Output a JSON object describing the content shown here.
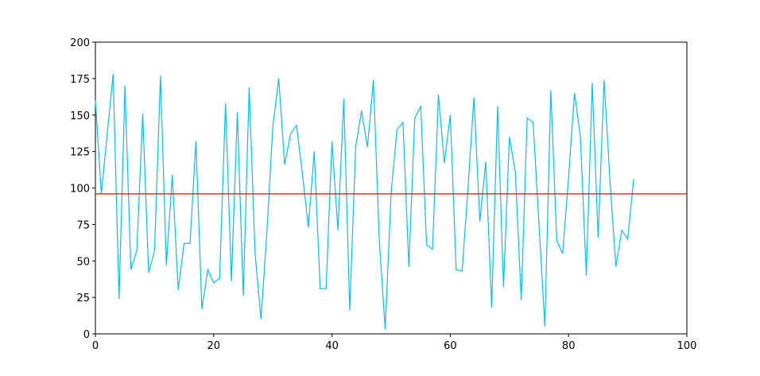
{
  "chart_data": {
    "type": "line",
    "x": [
      0,
      1,
      2,
      3,
      4,
      5,
      6,
      7,
      8,
      9,
      10,
      11,
      12,
      13,
      14,
      15,
      16,
      17,
      18,
      19,
      20,
      21,
      22,
      23,
      24,
      25,
      26,
      27,
      28,
      29,
      30,
      31,
      32,
      33,
      34,
      35,
      36,
      37,
      38,
      39,
      40,
      41,
      42,
      43,
      44,
      45,
      46,
      47,
      48,
      49,
      50,
      51,
      52,
      53,
      54,
      55,
      56,
      57,
      58,
      59,
      60,
      61,
      62,
      63,
      64,
      65,
      66,
      67,
      68,
      69,
      70,
      71,
      72,
      73,
      74,
      75,
      76,
      77,
      78,
      79,
      80,
      81,
      82,
      83,
      84,
      85,
      86,
      87,
      88,
      89,
      90,
      91
    ],
    "series": [
      {
        "color": "#00bfff",
        "values": [
          160,
          96,
          137,
          178,
          24,
          170,
          44,
          57,
          151,
          42,
          57,
          177,
          47,
          109,
          30,
          62,
          62,
          132,
          17,
          44,
          35,
          38,
          158,
          36,
          152,
          26,
          169,
          55,
          10,
          70,
          142,
          175,
          116,
          137,
          143,
          110,
          73,
          125,
          31,
          31,
          132,
          71,
          161,
          16,
          128,
          153,
          128,
          174,
          64,
          3,
          97,
          140,
          145,
          46,
          148,
          156,
          61,
          58,
          164,
          117,
          150,
          44,
          43,
          100,
          162,
          77,
          118,
          18,
          156,
          32,
          135,
          111,
          23,
          148,
          145,
          75,
          5,
          167,
          64,
          55,
          107,
          165,
          135,
          40,
          172,
          66,
          174,
          105,
          46,
          71,
          65,
          106
        ]
      }
    ],
    "hline": {
      "value": 96,
      "color": "#ff0000"
    },
    "xlim": [
      0,
      100
    ],
    "xticks": [
      0,
      20,
      40,
      60,
      80,
      100
    ],
    "ylim": [
      0,
      200
    ],
    "yticks": [
      0,
      25,
      50,
      75,
      100,
      125,
      150,
      175,
      200
    ]
  }
}
